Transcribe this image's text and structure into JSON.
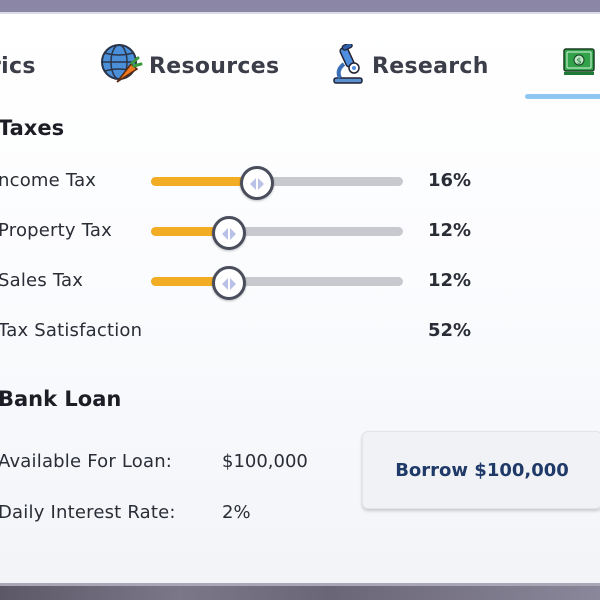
{
  "tabs": [
    {
      "label": "rics",
      "icon": "metrics-icon"
    },
    {
      "label": "Resources",
      "icon": "globe-carrot-icon"
    },
    {
      "label": "Research",
      "icon": "microscope-icon"
    },
    {
      "label": "",
      "icon": "money-icon",
      "active": true
    }
  ],
  "taxes": {
    "title": "Taxes",
    "rows": [
      {
        "label": "ncome Tax",
        "value": "16%",
        "level": 0.42
      },
      {
        "label": "Property Tax",
        "value": "12%",
        "level": 0.31
      },
      {
        "label": "Sales Tax",
        "value": "12%",
        "level": 0.31
      }
    ],
    "satisfaction": {
      "label": "Tax Satisfaction",
      "value": "52%"
    }
  },
  "loan": {
    "title": "Bank Loan",
    "available_label": "Available For Loan:",
    "available_value": "$100,000",
    "rate_label": "Daily Interest Rate:",
    "rate_value": "2%",
    "borrow_label": "Borrow $100,000"
  },
  "colors": {
    "accent": "#f3ad25",
    "tab_underline": "#8ec8f2",
    "button_text": "#1f3a68"
  }
}
